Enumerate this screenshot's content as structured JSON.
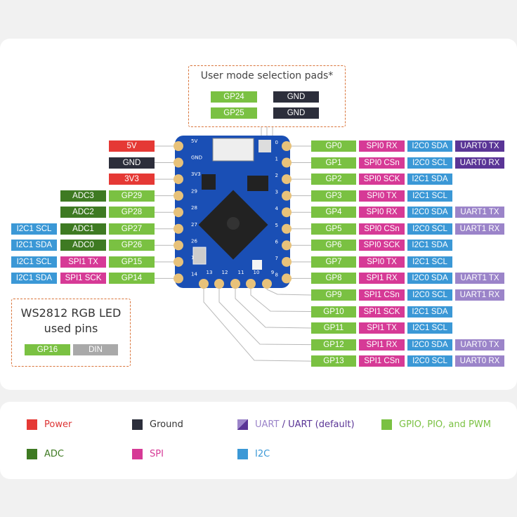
{
  "colors": {
    "power": "#e53935",
    "ground": "#2c2e3b",
    "gpio": "#7ac142",
    "adc": "#3e7a22",
    "spi": "#d63a96",
    "i2c": "#3b98d6",
    "uart_default": "#5a3596",
    "uart": "#9b84c9",
    "board": "#1a4fb5",
    "pad": "#e8c27a",
    "outline": "#d9743a"
  },
  "mode_pads": {
    "title": "User mode selection pads*",
    "rows": [
      [
        "GP24",
        "GND"
      ],
      [
        "GP25",
        "GND"
      ]
    ]
  },
  "led": {
    "title_line1": "WS2812 RGB LED",
    "title_line2": "used pins",
    "pins": [
      "GP16",
      "DIN"
    ]
  },
  "board": {
    "silk_left": [
      "5V",
      "GND",
      "3V3",
      "29",
      "28",
      "27",
      "26",
      "15",
      "14"
    ],
    "silk_right": [
      "0",
      "1",
      "2",
      "3",
      "4",
      "5",
      "6",
      "7",
      "8"
    ],
    "silk_bottom": [
      "13",
      "12",
      "11",
      "10",
      "9"
    ]
  },
  "left_rows": [
    [
      [
        "5V",
        "power"
      ]
    ],
    [
      [
        "GND",
        "ground"
      ]
    ],
    [
      [
        "3V3",
        "power"
      ]
    ],
    [
      [
        "GP29",
        "gpio"
      ],
      [
        "ADC3",
        "adc"
      ]
    ],
    [
      [
        "GP28",
        "gpio"
      ],
      [
        "ADC2",
        "adc"
      ]
    ],
    [
      [
        "GP27",
        "gpio"
      ],
      [
        "ADC1",
        "adc"
      ],
      [
        "I2C1 SCL",
        "i2c"
      ]
    ],
    [
      [
        "GP26",
        "gpio"
      ],
      [
        "ADC0",
        "adc"
      ],
      [
        "I2C1 SDA",
        "i2c"
      ]
    ],
    [
      [
        "GP15",
        "gpio"
      ],
      [
        "SPI1 TX",
        "spi"
      ],
      [
        "I2C1 SCL",
        "i2c"
      ]
    ],
    [
      [
        "GP14",
        "gpio"
      ],
      [
        "SPI1 SCK",
        "spi"
      ],
      [
        "I2C1 SDA",
        "i2c"
      ]
    ]
  ],
  "right_rows": [
    [
      [
        "GP0",
        "gpio"
      ],
      [
        "SPI0 RX",
        "spi"
      ],
      [
        "I2C0 SDA",
        "i2c"
      ],
      [
        "UART0 TX",
        "uart_default"
      ]
    ],
    [
      [
        "GP1",
        "gpio"
      ],
      [
        "SPI0 CSn",
        "spi"
      ],
      [
        "I2C0 SCL",
        "i2c"
      ],
      [
        "UART0 RX",
        "uart_default"
      ]
    ],
    [
      [
        "GP2",
        "gpio"
      ],
      [
        "SPI0 SCK",
        "spi"
      ],
      [
        "I2C1 SDA",
        "i2c"
      ]
    ],
    [
      [
        "GP3",
        "gpio"
      ],
      [
        "SPI0 TX",
        "spi"
      ],
      [
        "I2C1 SCL",
        "i2c"
      ]
    ],
    [
      [
        "GP4",
        "gpio"
      ],
      [
        "SPI0 RX",
        "spi"
      ],
      [
        "I2C0 SDA",
        "i2c"
      ],
      [
        "UART1 TX",
        "uart"
      ]
    ],
    [
      [
        "GP5",
        "gpio"
      ],
      [
        "SPI0 CSn",
        "spi"
      ],
      [
        "I2C0 SCL",
        "i2c"
      ],
      [
        "UART1 RX",
        "uart"
      ]
    ],
    [
      [
        "GP6",
        "gpio"
      ],
      [
        "SPI0 SCK",
        "spi"
      ],
      [
        "I2C1 SDA",
        "i2c"
      ]
    ],
    [
      [
        "GP7",
        "gpio"
      ],
      [
        "SPI0 TX",
        "spi"
      ],
      [
        "I2C1 SCL",
        "i2c"
      ]
    ],
    [
      [
        "GP8",
        "gpio"
      ],
      [
        "SPI1 RX",
        "spi"
      ],
      [
        "I2C0 SDA",
        "i2c"
      ],
      [
        "UART1 TX",
        "uart"
      ]
    ],
    [
      [
        "GP9",
        "gpio"
      ],
      [
        "SPI1 CSn",
        "spi"
      ],
      [
        "I2C0 SCL",
        "i2c"
      ],
      [
        "UART1 RX",
        "uart"
      ]
    ],
    [
      [
        "GP10",
        "gpio"
      ],
      [
        "SPI1 SCK",
        "spi"
      ],
      [
        "I2C1 SDA",
        "i2c"
      ]
    ],
    [
      [
        "GP11",
        "gpio"
      ],
      [
        "SPI1 TX",
        "spi"
      ],
      [
        "I2C1 SCL",
        "i2c"
      ]
    ],
    [
      [
        "GP12",
        "gpio"
      ],
      [
        "SPI1 RX",
        "spi"
      ],
      [
        "I2C0 SDA",
        "i2c"
      ],
      [
        "UART0 TX",
        "uart"
      ]
    ],
    [
      [
        "GP13",
        "gpio"
      ],
      [
        "SPI1 CSn",
        "spi"
      ],
      [
        "I2C0 SCL",
        "i2c"
      ],
      [
        "UART0 RX",
        "uart"
      ]
    ]
  ],
  "legend": {
    "power": "Power",
    "ground": "Ground",
    "uart_a": "UART",
    "uart_sep": " / ",
    "uart_b": "UART (default)",
    "gpio": "GPIO, PIO, and PWM",
    "adc": "ADC",
    "spi": "SPI",
    "i2c": "I2C"
  }
}
